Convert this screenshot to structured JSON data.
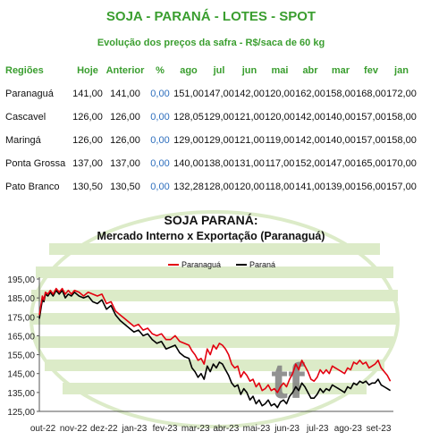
{
  "header": {
    "title": "SOJA - PARANÁ - LOTES - SPOT",
    "subtitle": "Evolução dos preços da safra - R$/saca de 60 kg"
  },
  "table": {
    "columns": [
      "Regiões",
      "Hoje",
      "Anterior",
      "%",
      "ago",
      "jul",
      "jun",
      "mai",
      "abr",
      "mar",
      "fev",
      "jan"
    ],
    "rows": [
      [
        "Paranaguá",
        "141,00",
        "141,00",
        "0,00",
        "151,00",
        "147,00",
        "142,00",
        "120,00",
        "162,00",
        "158,00",
        "168,00",
        "172,00"
      ],
      [
        "Cascavel",
        "126,00",
        "126,00",
        "0,00",
        "128,05",
        "129,00",
        "121,00",
        "120,00",
        "142,00",
        "140,00",
        "157,00",
        "158,00"
      ],
      [
        "Maringá",
        "126,00",
        "126,00",
        "0,00",
        "129,00",
        "129,00",
        "121,00",
        "119,00",
        "142,00",
        "140,00",
        "157,00",
        "158,00"
      ],
      [
        "Ponta Grossa",
        "137,00",
        "137,00",
        "0,00",
        "140,00",
        "138,00",
        "131,00",
        "117,00",
        "152,00",
        "147,00",
        "165,00",
        "170,00"
      ],
      [
        "Pato Branco",
        "130,50",
        "130,50",
        "0,00",
        "132,28",
        "128,00",
        "120,00",
        "118,00",
        "141,00",
        "139,00",
        "156,00",
        "157,00"
      ]
    ]
  },
  "chart_data": {
    "type": "line",
    "title": "SOJA PARANÁ:",
    "subtitle": "Mercado Interno x Exportação (Paranaguá)",
    "watermark": "tf",
    "ylim": [
      125,
      195
    ],
    "yticks": [
      "195,00",
      "185,00",
      "175,00",
      "165,00",
      "155,00",
      "145,00",
      "135,00",
      "125,00"
    ],
    "ytick_values": [
      195,
      185,
      175,
      165,
      155,
      145,
      135,
      125
    ],
    "xticks": [
      "out-22",
      "nov-22",
      "dez-22",
      "jan-23",
      "fev-23",
      "mar-23",
      "abr-23",
      "mai-23",
      "jun-23",
      "jul-23",
      "ago-23",
      "set-23"
    ],
    "x": [
      0,
      0.05,
      0.1,
      0.15,
      0.2,
      0.28,
      0.36,
      0.45,
      0.55,
      0.65,
      0.75,
      0.85,
      0.95,
      1.05,
      1.15,
      1.3,
      1.45,
      1.6,
      1.75,
      1.9,
      2.05,
      2.2,
      2.35,
      2.5,
      2.65,
      2.8,
      2.95,
      3.1,
      3.25,
      3.4,
      3.55,
      3.7,
      3.85,
      4.0,
      4.15,
      4.3,
      4.45,
      4.6,
      4.75,
      4.9,
      5.0,
      5.1,
      5.2,
      5.3,
      5.4,
      5.5,
      5.6,
      5.7,
      5.8,
      5.9,
      6.0,
      6.1,
      6.2,
      6.3,
      6.4,
      6.5,
      6.6,
      6.7,
      6.8,
      6.9,
      7.0,
      7.1,
      7.2,
      7.3,
      7.4,
      7.5,
      7.6,
      7.7,
      7.8,
      7.9,
      8.0,
      8.1,
      8.2,
      8.3,
      8.4,
      8.5,
      8.6,
      8.7,
      8.8,
      8.9,
      9.0,
      9.1,
      9.2,
      9.3,
      9.4,
      9.5,
      9.6,
      9.7,
      9.8,
      9.9,
      10.0,
      10.1,
      10.2,
      10.3,
      10.4,
      10.5,
      10.6,
      10.7,
      10.8,
      10.9,
      11.0,
      11.1,
      11.2,
      11.3,
      11.4,
      11.5
    ],
    "series": [
      {
        "name": "Paranaguá",
        "color": "#e3000f",
        "values": [
          176,
          181,
          186,
          184,
          188,
          187,
          189,
          187,
          190,
          188,
          190,
          187,
          189,
          187,
          189,
          188,
          186,
          188,
          187,
          186,
          187,
          182,
          183,
          178,
          176,
          174,
          172,
          170,
          171,
          168,
          169,
          166,
          165,
          166,
          163,
          163,
          165,
          162,
          161,
          160,
          157,
          155,
          152,
          153,
          150,
          158,
          155,
          160,
          158,
          161,
          160,
          158,
          155,
          150,
          148,
          149,
          143,
          146,
          144,
          141,
          142,
          138,
          140,
          136,
          137,
          139,
          136,
          137,
          135,
          138,
          140,
          138,
          142,
          145,
          150,
          147,
          152,
          149,
          146,
          142,
          141,
          143,
          147,
          145,
          147,
          145,
          149,
          148,
          147,
          146,
          145,
          148,
          147,
          151,
          150,
          152,
          150,
          151,
          148,
          149,
          150,
          152,
          148,
          146,
          144,
          141
        ]
      },
      {
        "name": "Paraná",
        "color": "#000000",
        "values": [
          174,
          179,
          184,
          183,
          187,
          186,
          188,
          186,
          189,
          187,
          189,
          185,
          187,
          186,
          188,
          186,
          185,
          186,
          183,
          182,
          184,
          179,
          181,
          176,
          173,
          171,
          169,
          167,
          168,
          165,
          166,
          163,
          161,
          162,
          158,
          159,
          160,
          156,
          154,
          153,
          148,
          146,
          143,
          145,
          142,
          149,
          146,
          150,
          148,
          151,
          150,
          147,
          144,
          140,
          138,
          139,
          134,
          137,
          135,
          131,
          133,
          129,
          131,
          128,
          129,
          131,
          128,
          129,
          127,
          130,
          131,
          129,
          133,
          135,
          138,
          136,
          140,
          138,
          135,
          132,
          132,
          134,
          137,
          135,
          137,
          136,
          139,
          138,
          137,
          136,
          135,
          138,
          137,
          140,
          139,
          141,
          140,
          141,
          139,
          140,
          140,
          142,
          139,
          138,
          137,
          136
        ]
      }
    ],
    "legend": "top"
  }
}
